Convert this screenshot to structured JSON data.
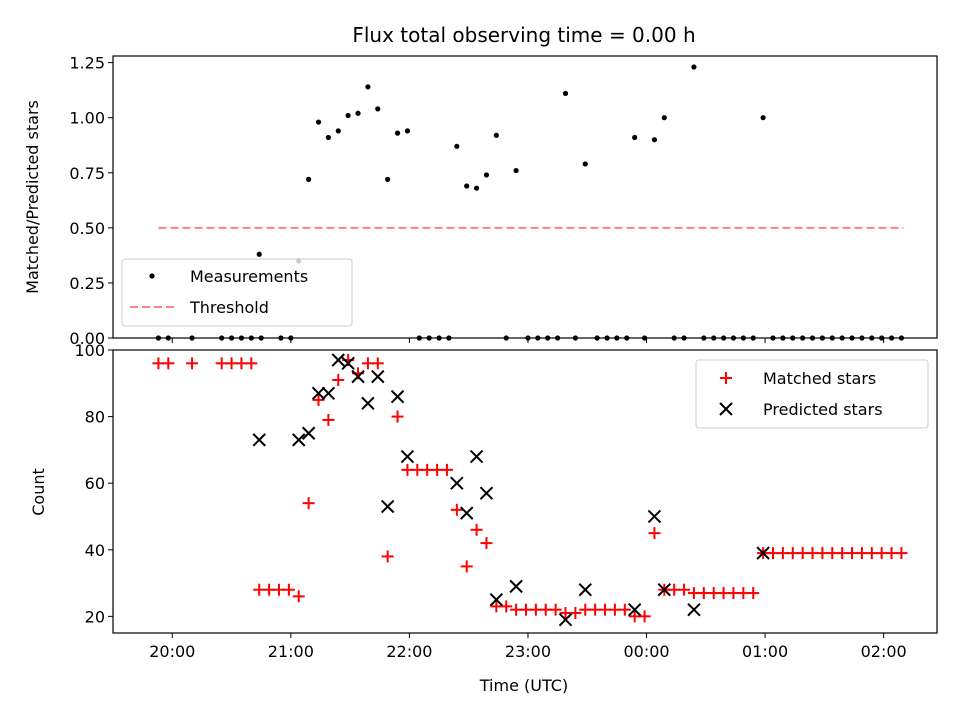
{
  "chart_data": [
    {
      "type": "scatter",
      "title": "Flux total observing time = 0.00 h",
      "xlabel": "",
      "ylabel": "Matched/Predicted stars",
      "ylim": [
        0,
        1.28
      ],
      "yticks": [
        "0.00",
        "0.25",
        "0.50",
        "0.75",
        "1.00",
        "1.25"
      ],
      "ytick_values": [
        0,
        0.25,
        0.5,
        0.75,
        1.0,
        1.25
      ],
      "xlim_hours": [
        19.5,
        2.45
      ],
      "legend_position": "lower-left",
      "legend": [
        "Measurements",
        "Threshold"
      ],
      "threshold": {
        "value": 0.5,
        "x_start": "19:53",
        "x_end": "02:10",
        "color": "#ff8080"
      },
      "series": [
        {
          "name": "Measurements",
          "marker": "dot",
          "color": "#000000",
          "points": [
            [
              "19:53",
              0
            ],
            [
              "19:58",
              0
            ],
            [
              "20:10",
              0
            ],
            [
              "20:25",
              0
            ],
            [
              "20:30",
              0
            ],
            [
              "20:35",
              0
            ],
            [
              "20:40",
              0
            ],
            [
              "20:45",
              0
            ],
            [
              "20:55",
              0
            ],
            [
              "21:00",
              0
            ],
            [
              "20:44",
              0.38
            ],
            [
              "21:04",
              0.35
            ],
            [
              "21:09",
              0.72
            ],
            [
              "21:14",
              0.98
            ],
            [
              "21:19",
              0.91
            ],
            [
              "21:24",
              0.94
            ],
            [
              "21:29",
              1.01
            ],
            [
              "21:34",
              1.02
            ],
            [
              "21:39",
              1.14
            ],
            [
              "21:44",
              1.04
            ],
            [
              "21:49",
              0.72
            ],
            [
              "21:54",
              0.93
            ],
            [
              "21:59",
              0.94
            ],
            [
              "22:05",
              0
            ],
            [
              "22:10",
              0
            ],
            [
              "22:15",
              0
            ],
            [
              "22:20",
              0
            ],
            [
              "22:24",
              0.87
            ],
            [
              "22:29",
              0.69
            ],
            [
              "22:34",
              0.68
            ],
            [
              "22:39",
              0.74
            ],
            [
              "22:44",
              0.92
            ],
            [
              "22:49",
              0
            ],
            [
              "22:54",
              0.76
            ],
            [
              "23:00",
              0
            ],
            [
              "23:05",
              0
            ],
            [
              "23:10",
              0
            ],
            [
              "23:15",
              0
            ],
            [
              "23:19",
              1.11
            ],
            [
              "23:24",
              0
            ],
            [
              "23:29",
              0.79
            ],
            [
              "23:35",
              0
            ],
            [
              "23:40",
              0
            ],
            [
              "23:45",
              0
            ],
            [
              "23:50",
              0
            ],
            [
              "23:54",
              0.91
            ],
            [
              "23:59",
              0
            ],
            [
              "00:04",
              0.9
            ],
            [
              "00:09",
              1.0
            ],
            [
              "00:14",
              0
            ],
            [
              "00:19",
              0
            ],
            [
              "00:24",
              1.23
            ],
            [
              "00:29",
              0
            ],
            [
              "00:34",
              0
            ],
            [
              "00:39",
              0
            ],
            [
              "00:44",
              0
            ],
            [
              "00:49",
              0
            ],
            [
              "00:54",
              0
            ],
            [
              "00:59",
              1.0
            ],
            [
              "01:04",
              0
            ],
            [
              "01:09",
              0
            ],
            [
              "01:14",
              0
            ],
            [
              "01:19",
              0
            ],
            [
              "01:24",
              0
            ],
            [
              "01:29",
              0
            ],
            [
              "01:34",
              0
            ],
            [
              "01:39",
              0
            ],
            [
              "01:44",
              0
            ],
            [
              "01:49",
              0
            ],
            [
              "01:54",
              0
            ],
            [
              "01:59",
              0
            ],
            [
              "02:04",
              0
            ],
            [
              "02:09",
              0
            ]
          ]
        }
      ]
    },
    {
      "type": "scatter",
      "title": "",
      "xlabel": "Time (UTC)",
      "ylabel": "Count",
      "ylim": [
        15,
        100
      ],
      "yticks": [
        "20",
        "40",
        "60",
        "80",
        "100"
      ],
      "ytick_values": [
        20,
        40,
        60,
        80,
        100
      ],
      "xticks": [
        "20:00",
        "21:00",
        "22:00",
        "23:00",
        "00:00",
        "01:00",
        "02:00"
      ],
      "xlim_hours": [
        19.5,
        2.45
      ],
      "legend_position": "top-right",
      "legend": [
        "Matched stars",
        "Predicted stars"
      ],
      "series": [
        {
          "name": "Matched stars",
          "marker": "plus",
          "color": "#ff0000",
          "points": [
            [
              "19:53",
              96
            ],
            [
              "19:58",
              96
            ],
            [
              "20:10",
              96
            ],
            [
              "20:25",
              96
            ],
            [
              "20:30",
              96
            ],
            [
              "20:35",
              96
            ],
            [
              "20:40",
              96
            ],
            [
              "20:44",
              28
            ],
            [
              "20:49",
              28
            ],
            [
              "20:54",
              28
            ],
            [
              "20:59",
              28
            ],
            [
              "21:04",
              26
            ],
            [
              "21:09",
              54
            ],
            [
              "21:14",
              85
            ],
            [
              "21:19",
              79
            ],
            [
              "21:24",
              91
            ],
            [
              "21:29",
              97
            ],
            [
              "21:34",
              93
            ],
            [
              "21:39",
              96
            ],
            [
              "21:44",
              96
            ],
            [
              "21:49",
              38
            ],
            [
              "21:54",
              80
            ],
            [
              "21:59",
              64
            ],
            [
              "22:04",
              64
            ],
            [
              "22:09",
              64
            ],
            [
              "22:14",
              64
            ],
            [
              "22:19",
              64
            ],
            [
              "22:24",
              52
            ],
            [
              "22:29",
              35
            ],
            [
              "22:34",
              46
            ],
            [
              "22:39",
              42
            ],
            [
              "22:44",
              23
            ],
            [
              "22:49",
              23
            ],
            [
              "22:54",
              22
            ],
            [
              "22:59",
              22
            ],
            [
              "23:04",
              22
            ],
            [
              "23:09",
              22
            ],
            [
              "23:14",
              22
            ],
            [
              "23:19",
              21
            ],
            [
              "23:24",
              21
            ],
            [
              "23:29",
              22
            ],
            [
              "23:34",
              22
            ],
            [
              "23:39",
              22
            ],
            [
              "23:44",
              22
            ],
            [
              "23:49",
              22
            ],
            [
              "23:54",
              20
            ],
            [
              "23:59",
              20
            ],
            [
              "00:04",
              45
            ],
            [
              "00:09",
              28
            ],
            [
              "00:14",
              28
            ],
            [
              "00:19",
              28
            ],
            [
              "00:24",
              27
            ],
            [
              "00:29",
              27
            ],
            [
              "00:34",
              27
            ],
            [
              "00:39",
              27
            ],
            [
              "00:44",
              27
            ],
            [
              "00:49",
              27
            ],
            [
              "00:54",
              27
            ],
            [
              "00:59",
              39
            ],
            [
              "01:04",
              39
            ],
            [
              "01:09",
              39
            ],
            [
              "01:14",
              39
            ],
            [
              "01:19",
              39
            ],
            [
              "01:24",
              39
            ],
            [
              "01:29",
              39
            ],
            [
              "01:34",
              39
            ],
            [
              "01:39",
              39
            ],
            [
              "01:44",
              39
            ],
            [
              "01:49",
              39
            ],
            [
              "01:54",
              39
            ],
            [
              "01:59",
              39
            ],
            [
              "02:04",
              39
            ],
            [
              "02:09",
              39
            ]
          ]
        },
        {
          "name": "Predicted stars",
          "marker": "x",
          "color": "#000000",
          "points": [
            [
              "20:44",
              73
            ],
            [
              "21:04",
              73
            ],
            [
              "21:09",
              75
            ],
            [
              "21:14",
              87
            ],
            [
              "21:19",
              87
            ],
            [
              "21:24",
              97
            ],
            [
              "21:29",
              96
            ],
            [
              "21:34",
              92
            ],
            [
              "21:39",
              84
            ],
            [
              "21:44",
              92
            ],
            [
              "21:49",
              53
            ],
            [
              "21:54",
              86
            ],
            [
              "21:59",
              68
            ],
            [
              "22:24",
              60
            ],
            [
              "22:29",
              51
            ],
            [
              "22:34",
              68
            ],
            [
              "22:39",
              57
            ],
            [
              "22:44",
              25
            ],
            [
              "22:54",
              29
            ],
            [
              "23:19",
              19
            ],
            [
              "23:29",
              28
            ],
            [
              "23:54",
              22
            ],
            [
              "00:04",
              50
            ],
            [
              "00:09",
              28
            ],
            [
              "00:24",
              22
            ],
            [
              "00:59",
              39
            ]
          ]
        }
      ]
    }
  ]
}
